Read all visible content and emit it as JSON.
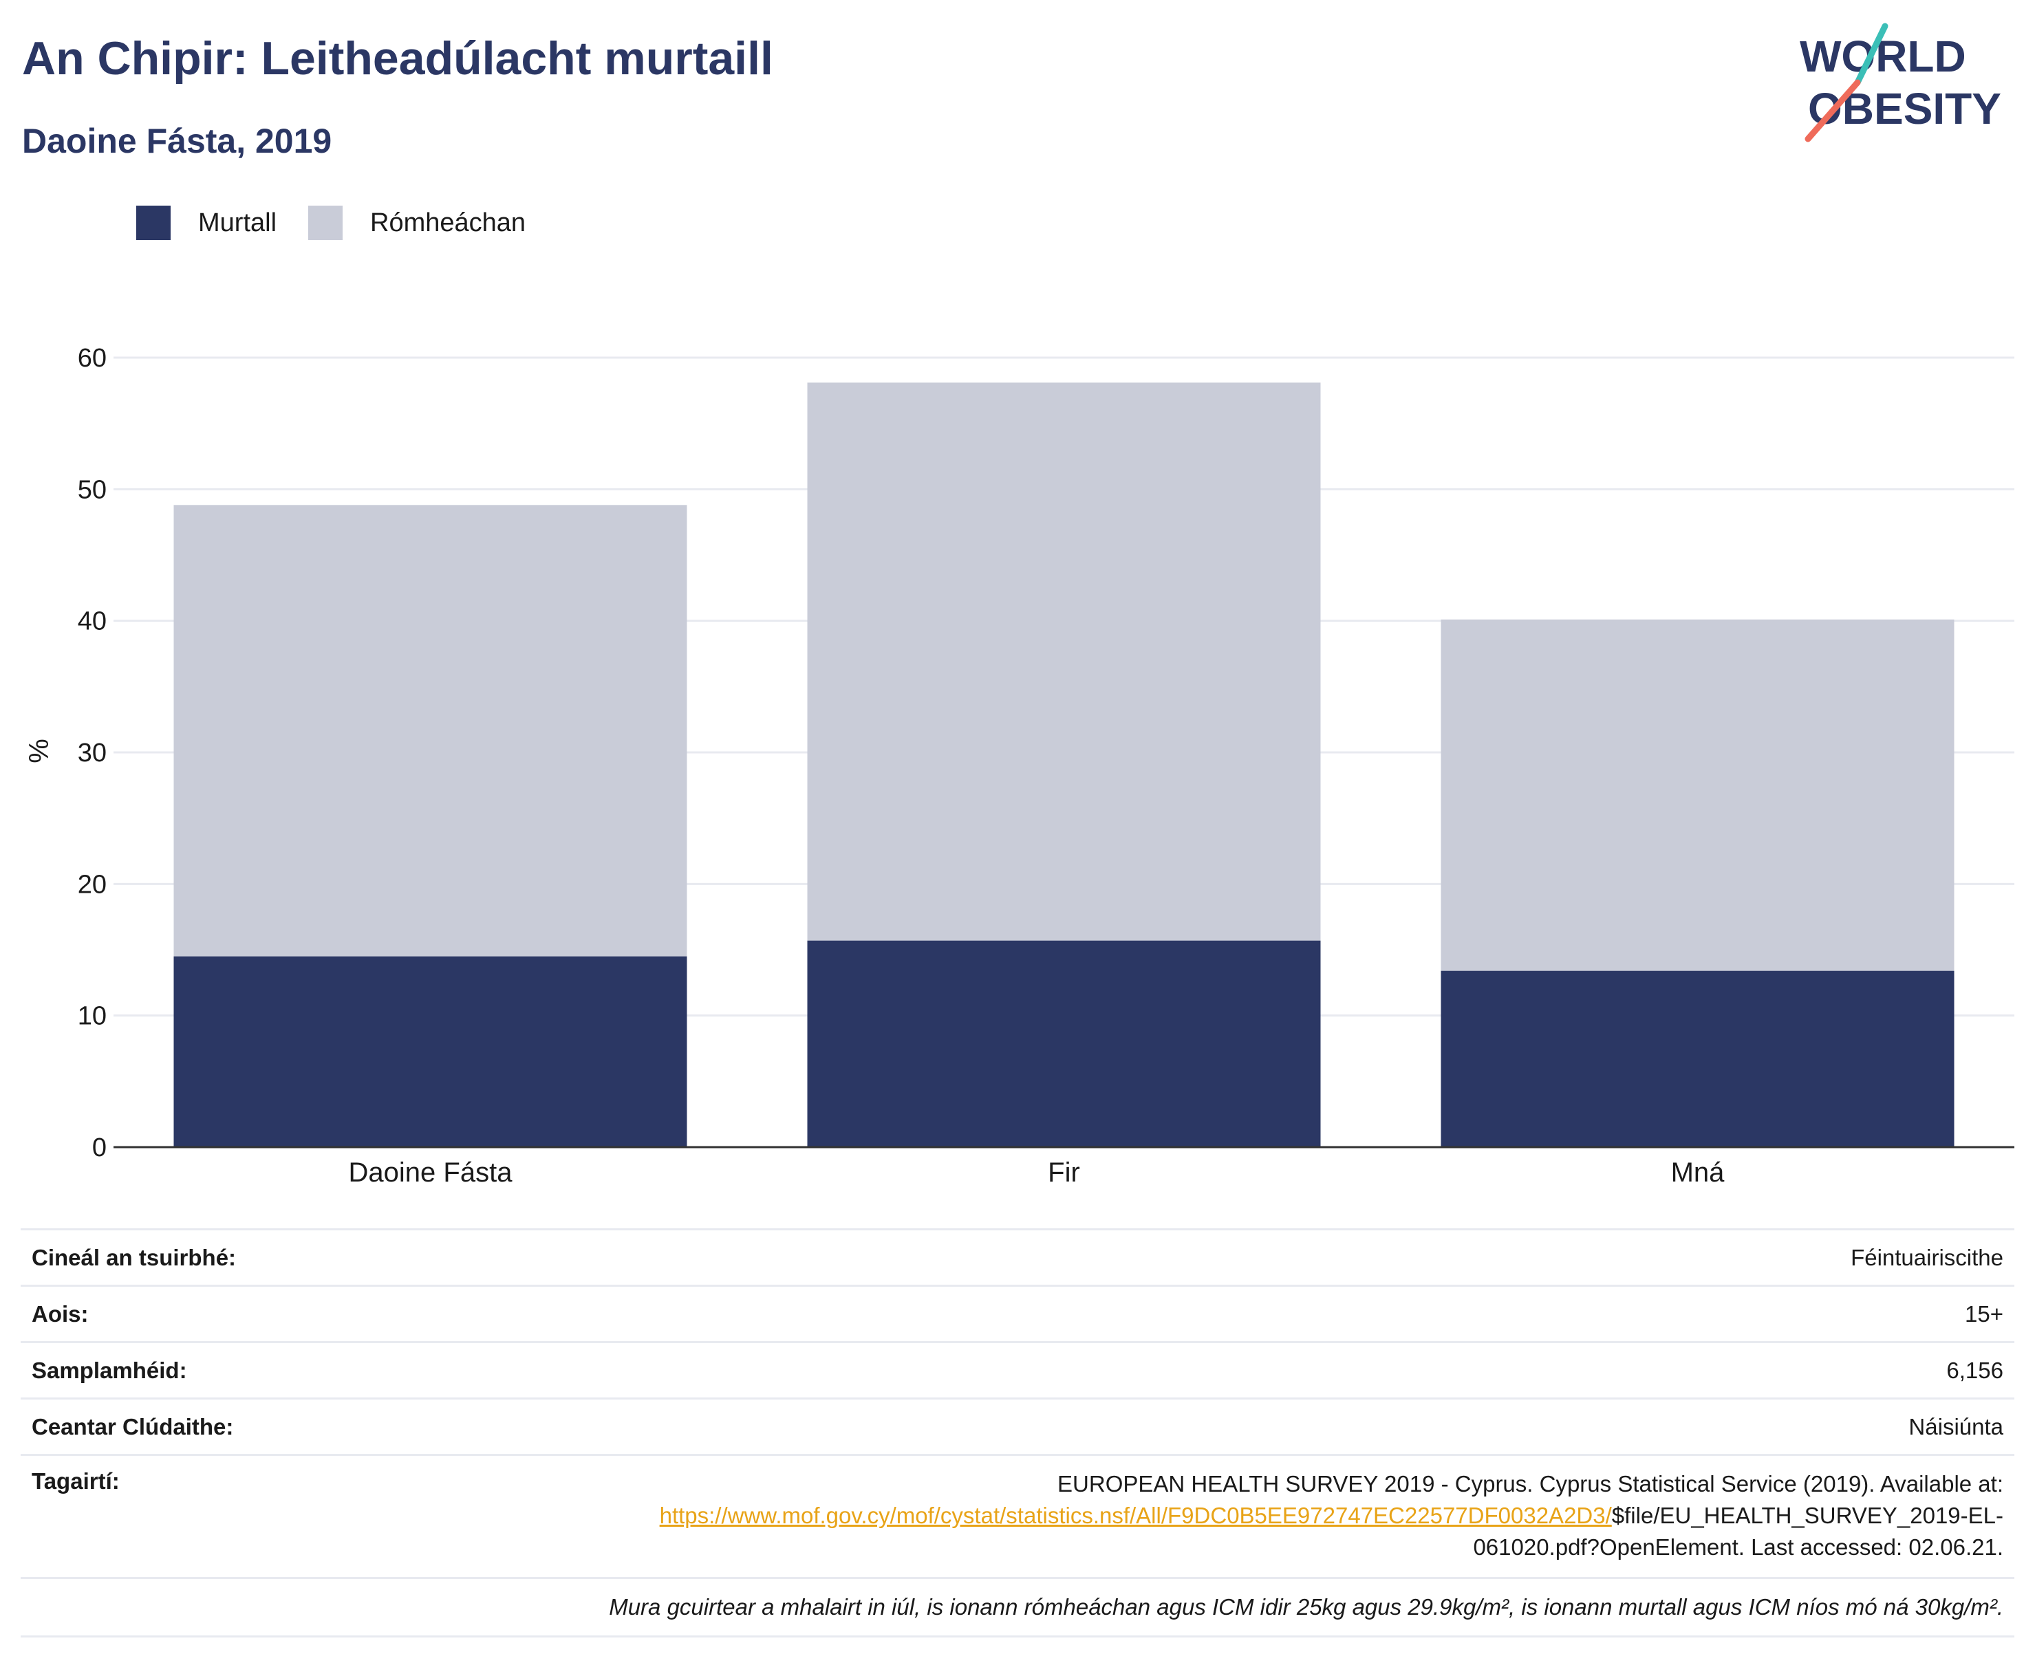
{
  "header": {
    "title": "An Chipir: Leitheadúlacht murtaill",
    "subtitle": "Daoine Fásta, 2019"
  },
  "logo": {
    "line1": "WORLD",
    "line2": "OBESITY"
  },
  "colors": {
    "obese": "#2b3764",
    "overweight": "#c9ccd8",
    "accent_teal": "#3bbfb7",
    "accent_coral": "#ef6b5a",
    "link": "#e8a317"
  },
  "chart_data": {
    "type": "bar",
    "stacked": true,
    "categories": [
      "Daoine Fásta",
      "Fir",
      "Mná"
    ],
    "series": [
      {
        "name": "Murtall",
        "values": [
          14.5,
          15.7,
          13.4
        ]
      },
      {
        "name": "Rómheáchan",
        "values": [
          34.3,
          42.4,
          26.7
        ]
      }
    ],
    "ylabel": "%",
    "ylim": [
      0,
      60
    ],
    "yticks": [
      0,
      10,
      20,
      30,
      40,
      50,
      60
    ],
    "legend_position": "top-left",
    "grid": true
  },
  "info": {
    "rows": [
      {
        "key": "Cineál an tsuirbhé:",
        "value": "Féintuairiscithe"
      },
      {
        "key": "Aois:",
        "value": "15+"
      },
      {
        "key": "Samplamhéid:",
        "value": "6,156"
      },
      {
        "key": "Ceantar Clúdaithe:",
        "value": "Náisiúnta"
      }
    ],
    "references": {
      "key": "Tagairtí:",
      "text1": "EUROPEAN HEALTH SURVEY 2019 - Cyprus. Cyprus Statistical Service (2019). Available at:",
      "link": "https://www.mof.gov.cy/mof/cystat/statistics.nsf/All/F9DC0B5EE972747EC22577DF0032A2D3/",
      "text2": "$file/EU_HEALTH_SURVEY_2019-EL-",
      "text3": "061020.pdf?OpenElement. Last accessed: 02.06.21."
    },
    "note": "Mura gcuirtear a mhalairt in iúl, is ionann rómheáchan agus ICM idir 25kg agus 29.9kg/m², is ionann murtall agus ICM níos mó ná 30kg/m²."
  }
}
